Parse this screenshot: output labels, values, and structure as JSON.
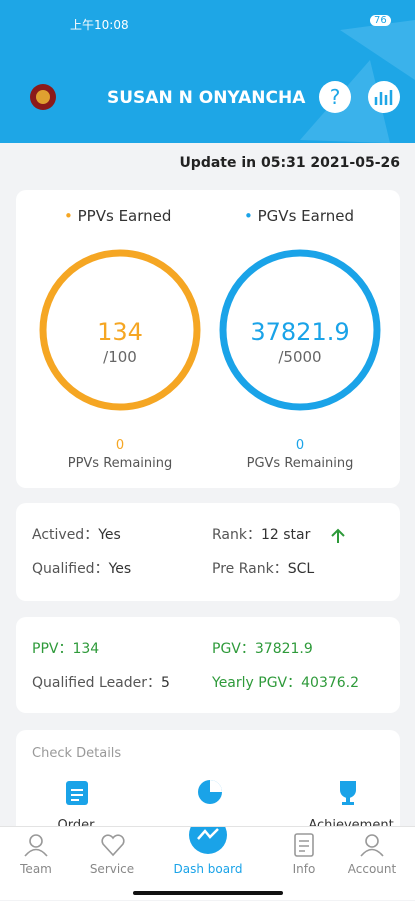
{
  "status_bar": {
    "time": "上午10:08",
    "battery": "76"
  },
  "header": {
    "title": "SUSAN N ONYANCHA"
  },
  "update": "Update in 05:31 2021-05-26",
  "earned_card": {
    "ppv": {
      "label": "PPVs Earned",
      "value": "134",
      "target": "/100",
      "remaining": "0",
      "remaining_label": "PPVs Remaining"
    },
    "pgv": {
      "label": "PGVs Earned",
      "value": "37821.9",
      "target": "/5000",
      "remaining": "0",
      "remaining_label": "PGVs Remaining"
    }
  },
  "status_card": {
    "rows": [
      [
        {
          "label": "Actived：",
          "value": "Yes"
        },
        {
          "label": "Rank：",
          "value": "12 star"
        }
      ],
      [
        {
          "label": "Qualified：",
          "value": "Yes"
        },
        {
          "label": "Pre Rank：",
          "value": "SCL"
        }
      ]
    ]
  },
  "volume_card": {
    "rows": [
      [
        {
          "label": "PPV：",
          "value": "134"
        },
        {
          "label": "PGV：",
          "value": "37821.9"
        }
      ],
      [
        {
          "label": "Qualified Leader：",
          "value": "5"
        },
        {
          "label": "Yearly PGV：",
          "value": "40376.2"
        }
      ]
    ]
  },
  "details_card": {
    "title": "Check Details",
    "items": [
      "Order",
      "Achievement"
    ]
  },
  "nav": [
    "Team",
    "Service",
    "Dash board",
    "Info",
    "Account"
  ]
}
